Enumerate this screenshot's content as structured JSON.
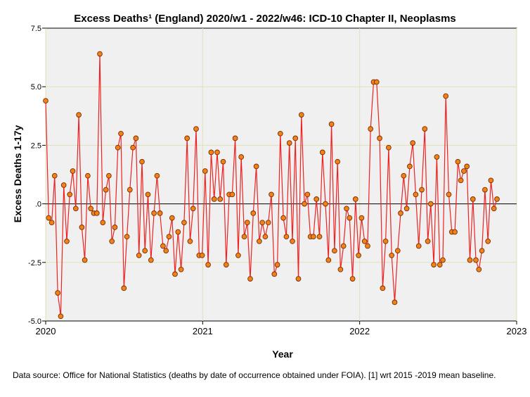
{
  "chart_data": {
    "type": "line",
    "title": "Excess Deaths¹ (England) 2020/w1 - 2022/w46: ICD-10 Chapter II, Neoplasms",
    "xlabel": "Year",
    "ylabel": "Excess Deaths 1-17y",
    "xlim": [
      2020,
      2023
    ],
    "ylim": [
      -5.0,
      7.5
    ],
    "x_ticks": [
      "2020",
      "2021",
      "2022",
      "2023"
    ],
    "y_ticks": [
      "7.5",
      "5.0",
      "2.5",
      ".0",
      "-2.5",
      "-5.0"
    ],
    "reference_line_y": 0,
    "series": [
      {
        "name": "Excess deaths",
        "x_start": 2020,
        "x_step_weeks": 1,
        "values": [
          4.4,
          -0.6,
          -0.8,
          1.2,
          -3.8,
          -4.8,
          0.8,
          -1.6,
          0.4,
          1.4,
          -0.2,
          3.8,
          -1.0,
          -2.4,
          1.2,
          -0.2,
          -0.4,
          -0.4,
          6.4,
          -0.8,
          0.6,
          1.2,
          -1.6,
          -1.0,
          2.4,
          3.0,
          -3.6,
          -1.4,
          0.6,
          2.4,
          2.8,
          -2.2,
          1.8,
          -2.0,
          0.4,
          -2.4,
          -0.4,
          1.2,
          -0.4,
          -1.8,
          -2.0,
          -1.4,
          -0.6,
          -3.0,
          -1.2,
          -2.8,
          -0.8,
          2.8,
          -1.6,
          -0.2,
          3.2,
          -2.2,
          -2.2,
          1.4,
          -2.6,
          2.2,
          0.2,
          2.2,
          0.2,
          1.8,
          -2.6,
          0.4,
          0.4,
          2.8,
          -2.2,
          2.0,
          -1.4,
          -0.8,
          -3.2,
          -0.4,
          1.6,
          -1.6,
          -0.8,
          -1.4,
          -0.8,
          0.4,
          -3.0,
          -2.6,
          3.0,
          -0.6,
          -1.4,
          2.6,
          -1.6,
          2.8,
          -3.2,
          3.8,
          0.0,
          0.4,
          -1.4,
          -1.4,
          0.2,
          -1.4,
          2.2,
          0.0,
          -2.4,
          3.4,
          -2.0,
          1.8,
          -2.8,
          -1.8,
          -0.2,
          -0.6,
          -3.2,
          0.2,
          -2.2,
          -0.6,
          -1.6,
          -1.8,
          3.2,
          5.2,
          5.2,
          2.8,
          -3.6,
          -1.6,
          2.4,
          -2.2,
          -4.2,
          -2.0,
          -0.4,
          1.2,
          -0.2,
          1.6,
          2.6,
          0.4,
          -1.8,
          0.6,
          3.2,
          -1.6,
          0.0,
          -2.6,
          2.0,
          -2.6,
          -2.4,
          4.6,
          0.4,
          -1.2,
          -1.2,
          1.8,
          1.0,
          1.4,
          1.6,
          -2.4,
          0.2,
          -2.4,
          -2.8,
          -2.0,
          0.6,
          -1.6,
          1.0,
          -0.2,
          0.2
        ]
      }
    ],
    "colors": {
      "line": "#ee2222",
      "marker_fill": "#f08218",
      "marker_edge": "#7a2a00",
      "plot_bg": "#f0f0f0",
      "grid": "#e2dfb8"
    }
  },
  "footnote": "Data source: Office for National Statistics (deaths by date of occurrence obtained under FOIA). [1] wrt 2015 -2019 mean baseline."
}
